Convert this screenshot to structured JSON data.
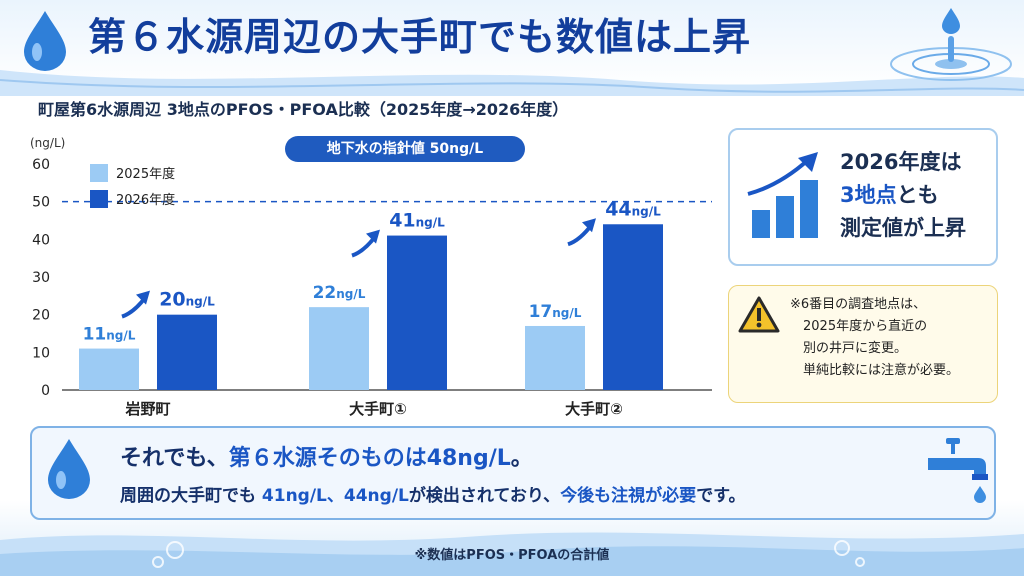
{
  "title": "第６水源周辺の大手町でも数値は上昇",
  "subtitle": "町屋第6水源周辺 3地点のPFOS・PFOA比較（2025年度→2026年度）",
  "guideline_badge": "地下水の指針値 50ng/L",
  "callout": {
    "line1": "2026年度は",
    "line2_accent": "3地点",
    "line2_rest": "とも",
    "line3": "測定値が上昇"
  },
  "note": "※6番目の調査地点は、\n　2025年度から直近の\n　別の井戸に変更。\n　単純比較には注意が必要。",
  "bottom": {
    "l1_a": "それでも、",
    "l1_b": "第６水源そのものは48ng/L",
    "l1_c": "。",
    "l2_a": "周囲の大手町でも ",
    "l2_b": "41ng/L、44ng/L",
    "l2_c": "が検出されており、",
    "l2_d": "今後も注視が必要",
    "l2_e": "です。"
  },
  "footnote": "※数値はPFOS・PFOAの合計値",
  "colors": {
    "series2025": "#9ccbf4",
    "series2026": "#1a56c4",
    "guideline": "#1a56c4",
    "title": "#123e9c"
  },
  "icons": [
    "water-drop-icon",
    "water-ripple-icon",
    "rising-bars-icon",
    "warning-icon",
    "faucet-icon"
  ],
  "chart_data": {
    "type": "bar",
    "categories": [
      "岩野町",
      "大手町①",
      "大手町②"
    ],
    "series": [
      {
        "name": "2025年度",
        "values": [
          11,
          22,
          17
        ]
      },
      {
        "name": "2026年度",
        "values": [
          20,
          41,
          44
        ]
      }
    ],
    "data_labels": [
      [
        "11ng/L",
        "22ng/L",
        "17ng/L"
      ],
      [
        "20ng/L",
        "41ng/L",
        "44ng/L"
      ]
    ],
    "ylabel": "(ng/L)",
    "ylim": [
      0,
      60
    ],
    "yticks": [
      0,
      10,
      20,
      30,
      40,
      50,
      60
    ],
    "reference_line": {
      "value": 50,
      "label": "地下水の指針値 50ng/L"
    },
    "grid": false,
    "legend": "top-left"
  }
}
